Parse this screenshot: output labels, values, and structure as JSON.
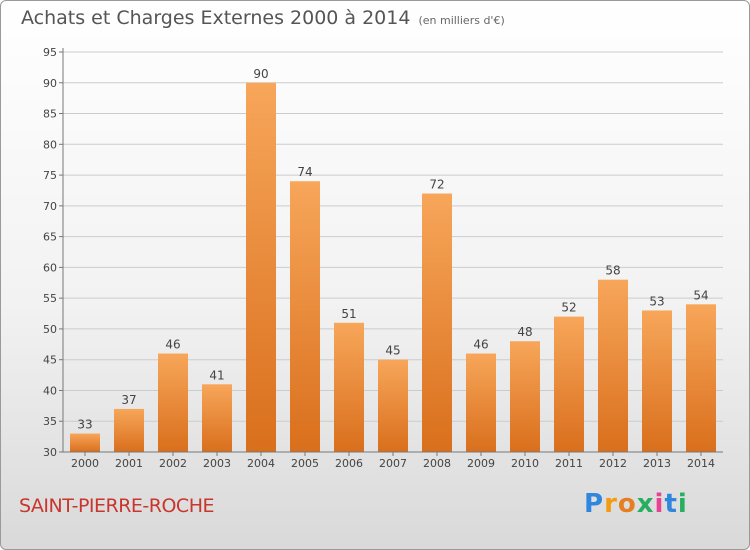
{
  "title": "Achats et Charges Externes 2000 à 2014",
  "subtitle": "(en milliers d'€)",
  "place": "SAINT-PIERRE-ROCHE",
  "brand": "Proxiti",
  "colors": {
    "bar_light": "#f7a65a",
    "bar_dark": "#d96f1c",
    "place_text": "#c8362d",
    "grid": "#cccccc"
  },
  "chart_data": {
    "type": "bar",
    "categories": [
      "2000",
      "2001",
      "2002",
      "2003",
      "2004",
      "2005",
      "2006",
      "2007",
      "2008",
      "2009",
      "2010",
      "2011",
      "2012",
      "2013",
      "2014"
    ],
    "values": [
      33,
      37,
      46,
      41,
      90,
      74,
      51,
      45,
      72,
      46,
      48,
      52,
      58,
      53,
      54
    ],
    "ylim": [
      30,
      95
    ],
    "yticks": [
      30,
      35,
      40,
      45,
      50,
      55,
      60,
      65,
      70,
      75,
      80,
      85,
      90,
      95
    ],
    "grid": true,
    "data_labels": true
  }
}
